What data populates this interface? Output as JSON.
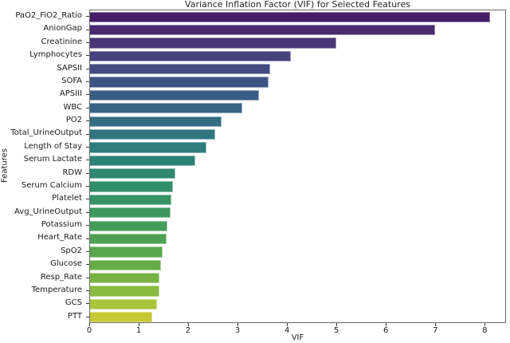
{
  "chart_data": {
    "type": "bar",
    "orientation": "horizontal",
    "title": "Variance Inflation Factor (VIF) for Selected Features",
    "xlabel": "VIF",
    "ylabel": "Features",
    "xlim": [
      0,
      8.43
    ],
    "x_tick_labels": [
      "0",
      "1",
      "2",
      "3",
      "4",
      "5",
      "6",
      "7",
      "8"
    ],
    "grid": false,
    "legend_position": "none",
    "colormap": "viridis",
    "categories": [
      "PaO2_FiO2_Ratio",
      "AnionGap",
      "Creatinine",
      "Lymphocytes",
      "SAPSII",
      "SOFA",
      "APSIII",
      "WBC",
      "PO2",
      "Total_UrineOutput",
      "Length of Stay",
      "Serum Lactate",
      "RDW",
      "Serum Calcium",
      "Platelet",
      "Avg_UrineOutput",
      "Potassium",
      "Heart_Rate",
      "SpO2",
      "Glucose",
      "Resp_Rate",
      "Temperature",
      "GCS",
      "PTT"
    ],
    "values": [
      8.09,
      6.98,
      4.98,
      4.06,
      3.65,
      3.61,
      3.42,
      3.08,
      2.66,
      2.53,
      2.36,
      2.13,
      1.72,
      1.67,
      1.65,
      1.63,
      1.56,
      1.55,
      1.46,
      1.43,
      1.41,
      1.4,
      1.36,
      1.25
    ],
    "bar_colors": [
      "#481b66",
      "#4a2a71",
      "#493677",
      "#47417e",
      "#424b82",
      "#3e5485",
      "#3a5d86",
      "#366587",
      "#336d84",
      "#307580",
      "#2e7c7b",
      "#2d8277",
      "#2e8871",
      "#318e6a",
      "#369364",
      "#3c985e",
      "#449d57",
      "#4da251",
      "#58a74c",
      "#66ad47",
      "#77b343",
      "#8aba3f",
      "#aac43c",
      "#c6c832"
    ],
    "axis_colors": {
      "spine": "#6a6a6a",
      "tick": "#3a3a3a",
      "text": "#1a1a1a",
      "title": "#262626"
    }
  }
}
